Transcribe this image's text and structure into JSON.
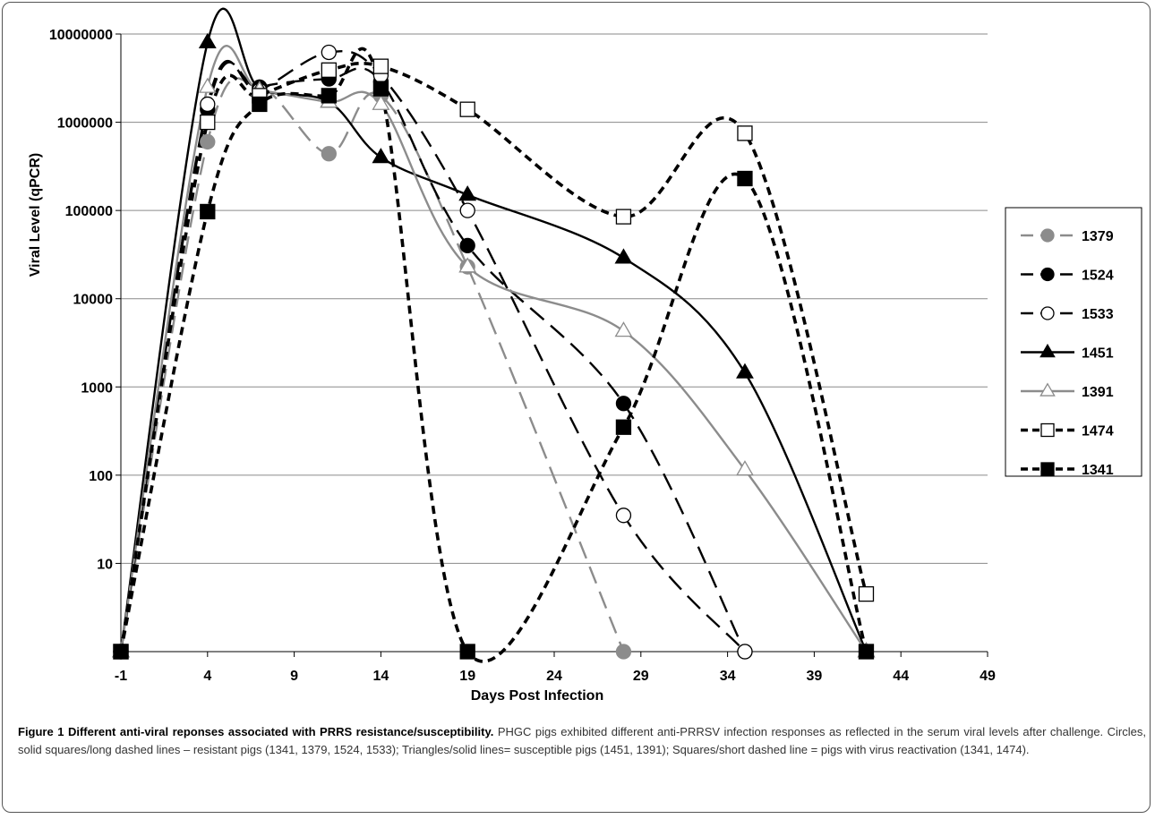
{
  "chart_data": {
    "type": "line",
    "title": "",
    "xlabel": "Days Post Infection",
    "ylabel": "Viral Level (qPCR)",
    "y_scale": "log",
    "ylim": [
      1,
      10000000
    ],
    "xlim": [
      -1,
      49
    ],
    "x_ticks": [
      -1,
      4,
      9,
      14,
      19,
      24,
      29,
      34,
      39,
      44,
      49
    ],
    "x_tick_labels": [
      "-1",
      "4",
      "9",
      "14",
      "19",
      "24",
      "29",
      "34",
      "39",
      "44",
      "49"
    ],
    "y_ticks": [
      10,
      100,
      1000,
      10000,
      100000,
      1000000,
      10000000
    ],
    "y_tick_labels": [
      "10",
      "100",
      "1000",
      "10000",
      "100000",
      "1000000",
      "10000000"
    ],
    "grid": true,
    "legend_position": "right",
    "series": [
      {
        "name": "1379",
        "color": "#8c8c8c",
        "dash": "long",
        "marker": "circle-filled",
        "x": [
          -1,
          4,
          7,
          11,
          14,
          19,
          28
        ],
        "y": [
          1,
          600000,
          2500000,
          440000,
          2000000,
          23000,
          1
        ]
      },
      {
        "name": "1524",
        "color": "#000000",
        "dash": "long",
        "marker": "circle-filled",
        "x": [
          -1,
          4,
          7,
          11,
          14,
          19,
          28,
          35
        ],
        "y": [
          1,
          1400000,
          2500000,
          3100000,
          2900000,
          40000,
          650,
          1
        ]
      },
      {
        "name": "1533",
        "color": "#000000",
        "dash": "long",
        "marker": "circle-open",
        "x": [
          -1,
          4,
          7,
          11,
          14,
          19,
          28,
          35
        ],
        "y": [
          1,
          1600000,
          2300000,
          6200000,
          3400000,
          100000,
          35,
          1
        ]
      },
      {
        "name": "1451",
        "color": "#000000",
        "dash": "solid",
        "marker": "triangle-filled",
        "x": [
          -1,
          4,
          7,
          11,
          14,
          19,
          28,
          35,
          42
        ],
        "y": [
          1,
          8000000,
          2400000,
          1700000,
          400000,
          150000,
          29000,
          1450,
          1
        ]
      },
      {
        "name": "1391",
        "color": "#8c8c8c",
        "dash": "solid",
        "marker": "triangle-open",
        "x": [
          -1,
          4,
          7,
          11,
          14,
          19,
          28,
          35,
          42
        ],
        "y": [
          1,
          2500000,
          2300000,
          1700000,
          1600000,
          23000,
          4300,
          115,
          1
        ]
      },
      {
        "name": "1474",
        "color": "#000000",
        "dash": "short",
        "marker": "square-open",
        "x": [
          -1,
          4,
          7,
          11,
          14,
          19,
          28,
          35,
          42
        ],
        "y": [
          1,
          1000000,
          2000000,
          3900000,
          4300000,
          1400000,
          85000,
          750000,
          4.5
        ]
      },
      {
        "name": "1341",
        "color": "#000000",
        "dash": "short",
        "marker": "square-filled",
        "x": [
          -1,
          4,
          7,
          11,
          14,
          19,
          28,
          35,
          42
        ],
        "y": [
          1,
          97000,
          1600000,
          2000000,
          2400000,
          1,
          350,
          230000,
          1
        ]
      }
    ]
  },
  "caption": {
    "title": "Figure 1 Different anti-viral reponses associated with PRRS resistance/susceptibility.",
    "text": " PHGC pigs exhibited different anti-PRRSV infection responses as reflected in the serum viral levels after challenge. Circles, solid squares/long dashed lines – resistant pigs (1341, 1379, 1524, 1533); Triangles/solid lines= susceptible pigs (1451, 1391); Squares/short dashed line = pigs with virus reactivation (1341, 1474)."
  }
}
